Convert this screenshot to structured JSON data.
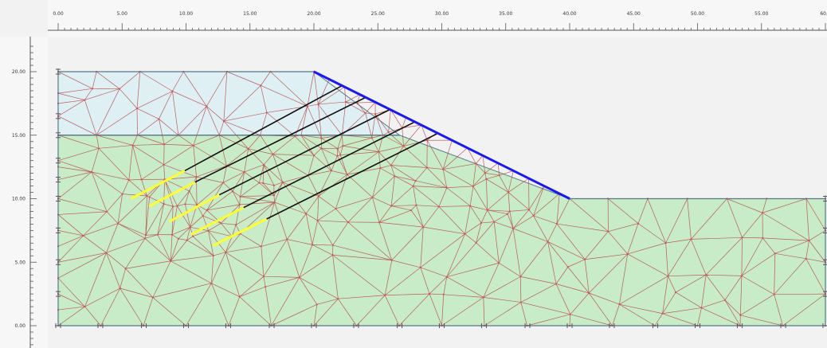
{
  "rulers": {
    "top": [
      "0.00",
      "5.00",
      "10.00",
      "15.00",
      "20.00",
      "25.00",
      "30.00",
      "35.00",
      "40.00",
      "45.00",
      "50.00",
      "55.00",
      "60.0"
    ],
    "left": [
      "20.00",
      "15.00",
      "10.00",
      "5.00",
      "0.00"
    ]
  },
  "colors": {
    "upper_layer": "#dff0f5",
    "lower_layer": "#c8ecc8",
    "mesh": "#b44444",
    "nodes": "#cc5555",
    "anchors_free": "#111111",
    "anchors_grout": "#ffff33",
    "load_line": "#1a1aee",
    "ruler_bg": "#f7f7f7"
  },
  "model": {
    "x_range": [
      0,
      60
    ],
    "y_range": [
      0,
      20
    ],
    "layers": [
      {
        "name": "upper",
        "polygon": [
          [
            0,
            20
          ],
          [
            20,
            20
          ],
          [
            26.7,
            15
          ],
          [
            0,
            15
          ]
        ]
      },
      {
        "name": "lower",
        "polygon": [
          [
            0,
            15
          ],
          [
            26.7,
            15
          ],
          [
            40,
            10
          ],
          [
            60,
            10
          ],
          [
            60,
            0
          ],
          [
            0,
            0
          ]
        ]
      }
    ],
    "slope_line": [
      [
        20,
        20
      ],
      [
        40,
        10
      ]
    ],
    "anchors": [
      {
        "head": [
          22.2,
          18.9
        ],
        "bond_start": [
          9.9,
          12.2
        ],
        "toe": [
          5.7,
          10.0
        ]
      },
      {
        "head": [
          24.1,
          18.0
        ],
        "bond_start": [
          10.7,
          11.3
        ],
        "toe": [
          7.1,
          9.4
        ]
      },
      {
        "head": [
          25.9,
          17.0
        ],
        "bond_start": [
          12.6,
          10.3
        ],
        "toe": [
          8.7,
          8.2
        ]
      },
      {
        "head": [
          27.8,
          16.0
        ],
        "bond_start": [
          14.5,
          9.3
        ],
        "toe": [
          10.4,
          7.2
        ]
      },
      {
        "head": [
          29.6,
          15.1
        ],
        "bond_start": [
          16.3,
          8.4
        ],
        "toe": [
          12.1,
          6.3
        ]
      }
    ],
    "boundary_nodes_bottom": [
      0,
      3.3,
      6.7,
      10,
      13.3,
      16.7,
      20,
      23.3,
      26.7,
      30,
      33.3,
      36.7,
      40,
      43.3,
      46.7,
      50,
      53.3,
      56.7,
      60
    ],
    "boundary_nodes_left": [
      2.5,
      5.0,
      7.5,
      10.0,
      11.5,
      13.0,
      15.0,
      16.5,
      20.0
    ],
    "boundary_nodes_right": [
      2.5,
      5.0,
      7.5,
      10.0
    ]
  }
}
